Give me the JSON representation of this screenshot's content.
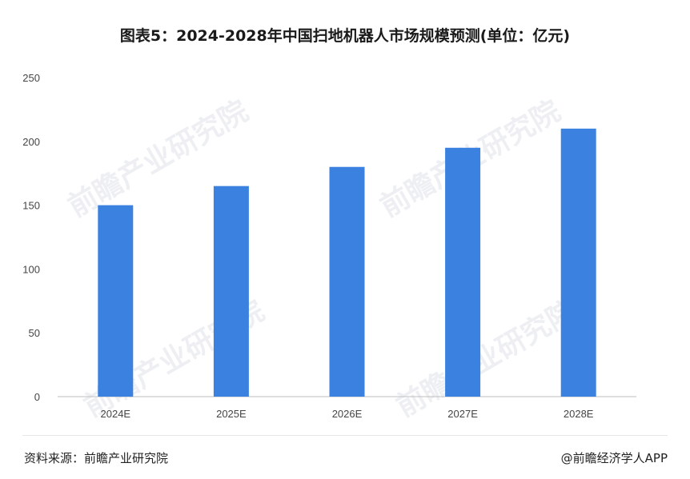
{
  "chart_data": {
    "type": "bar",
    "title": "图表5：2024-2028年中国扫地机器人市场规模预测(单位：亿元)",
    "categories": [
      "2024E",
      "2025E",
      "2026E",
      "2027E",
      "2028E"
    ],
    "values": [
      150,
      165,
      180,
      195,
      210
    ],
    "ylim": [
      0,
      250
    ],
    "yticks": [
      0,
      50,
      100,
      150,
      200,
      250
    ],
    "xlabel": "",
    "ylabel": "",
    "grid": false,
    "bar_color": "#3b82e0"
  },
  "source": "资料来源：前瞻产业研究院",
  "credit": "@前瞻经济学人APP",
  "watermark": "前瞻产业研究院"
}
